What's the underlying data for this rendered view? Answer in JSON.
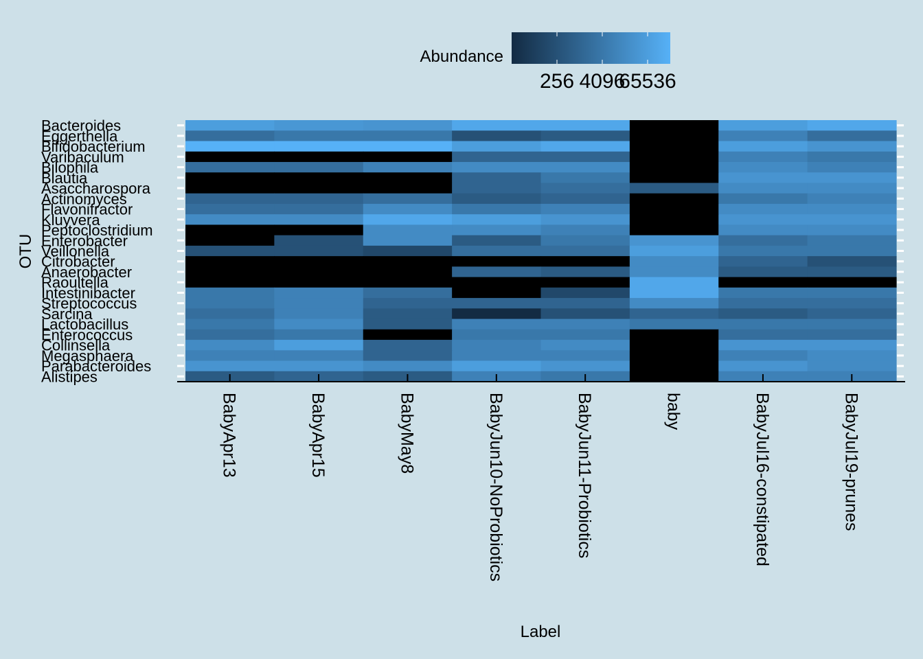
{
  "chart_data": {
    "type": "heatmap",
    "title": "",
    "xlabel": "Label",
    "ylabel": "OTU",
    "legend": {
      "title": "Abundance",
      "position": "top",
      "scale": "log2",
      "ticks": [
        256,
        4096,
        65536
      ],
      "tick_labels": [
        "256",
        "4096",
        "65536"
      ],
      "limits": [
        16,
        262144
      ],
      "colors": {
        "low": "#132b43",
        "high": "#56b1f7",
        "absent": "#000000"
      }
    },
    "grid": false,
    "x": [
      "BabyApr13",
      "BabyApr15",
      "BabyMay8",
      "BabyJun10-NoProbiotics",
      "BabyJun11-Probiotics",
      "baby",
      "BabyJul16-constipated",
      "BabyJul19-prunes"
    ],
    "y": [
      "Bacteroides",
      "Eggerthella",
      "Bifidobacterium",
      "Varibaculum",
      "Bilophila",
      "Blautia",
      "Asaccharospora",
      "Actinomyces",
      "Flavonifractor",
      "Kluyvera",
      "Peptoclostridium",
      "Enterobacter",
      "Veillonella",
      "Citrobacter",
      "Anaerobacter",
      "Raoultella",
      "Intestinibacter",
      "Streptococcus",
      "Sarcina",
      "Lactobacillus",
      "Enterococcus",
      "Collinsella",
      "Megasphaera",
      "Parabacteroides",
      "Alistipes"
    ],
    "values": [
      [
        65536,
        40000,
        32768,
        131072,
        131072,
        null,
        65536,
        131072
      ],
      [
        2048,
        4096,
        4096,
        256,
        512,
        null,
        8192,
        2048
      ],
      [
        262144,
        262144,
        262144,
        65536,
        131072,
        null,
        65536,
        32768
      ],
      [
        null,
        null,
        null,
        1024,
        1024,
        null,
        8192,
        4096
      ],
      [
        2048,
        2048,
        8192,
        16384,
        16384,
        null,
        16384,
        8192
      ],
      [
        null,
        null,
        null,
        1024,
        4096,
        null,
        32768,
        32768
      ],
      [
        null,
        null,
        null,
        1024,
        2048,
        512,
        16384,
        16384
      ],
      [
        1024,
        1024,
        2048,
        512,
        1024,
        null,
        4096,
        8192
      ],
      [
        2048,
        2048,
        16384,
        4096,
        8192,
        null,
        16384,
        16384
      ],
      [
        16384,
        16384,
        131072,
        65536,
        32768,
        null,
        32768,
        32768
      ],
      [
        null,
        null,
        16384,
        16384,
        8192,
        null,
        16384,
        16384
      ],
      [
        null,
        256,
        16384,
        512,
        4096,
        32768,
        2048,
        4096
      ],
      [
        256,
        256,
        128,
        2048,
        2048,
        65536,
        4096,
        4096
      ],
      [
        null,
        null,
        null,
        null,
        null,
        16384,
        1024,
        256
      ],
      [
        null,
        null,
        null,
        1024,
        512,
        16384,
        512,
        512
      ],
      [
        null,
        null,
        null,
        null,
        null,
        131072,
        null,
        null
      ],
      [
        4096,
        8192,
        2048,
        null,
        128,
        131072,
        4096,
        4096
      ],
      [
        4096,
        8192,
        1024,
        1024,
        1024,
        16384,
        2048,
        2048
      ],
      [
        2048,
        8192,
        512,
        16,
        256,
        1024,
        512,
        1024
      ],
      [
        4096,
        16384,
        512,
        8192,
        8192,
        4096,
        4096,
        4096
      ],
      [
        2048,
        4096,
        null,
        4096,
        4096,
        null,
        2048,
        2048
      ],
      [
        16384,
        65536,
        1024,
        8192,
        16384,
        null,
        32768,
        32768
      ],
      [
        8192,
        8192,
        1024,
        8192,
        8192,
        null,
        8192,
        16384
      ],
      [
        32768,
        32768,
        16384,
        65536,
        32768,
        null,
        32768,
        16384
      ],
      [
        512,
        1024,
        512,
        8192,
        4096,
        null,
        8192,
        8192
      ]
    ]
  }
}
